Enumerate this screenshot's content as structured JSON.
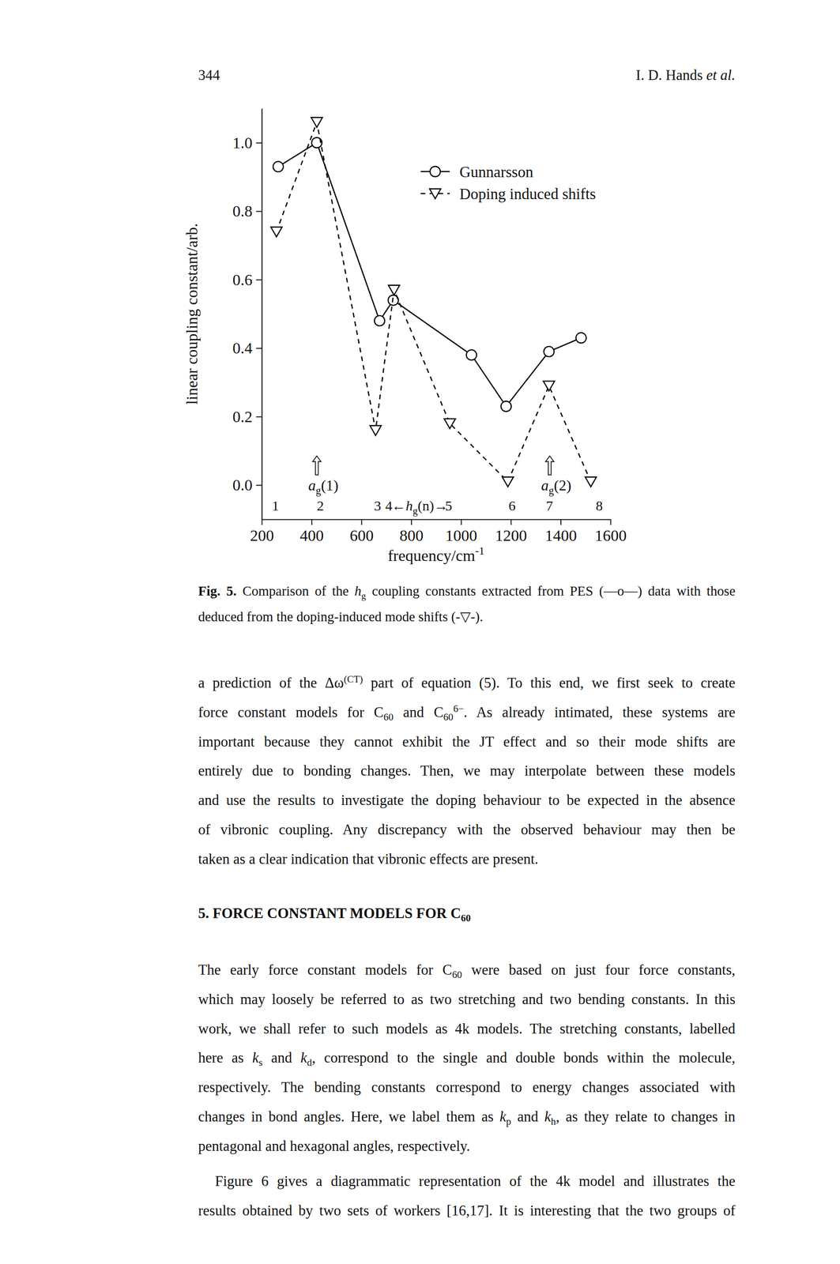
{
  "header": {
    "page_number": "344",
    "running_title": "I. D. Hands et al."
  },
  "chart_data": {
    "type": "line",
    "x_label": "frequency/cm-1",
    "y_label": "linear coupling constant/arb.",
    "xlim": [
      200,
      1600
    ],
    "xticks": [
      200,
      400,
      600,
      800,
      1000,
      1200,
      1400,
      1600
    ],
    "ylim": [
      -0.1,
      1.1
    ],
    "yticks": [
      {
        "value": 0,
        "label": "0.0"
      },
      0.2,
      0.4,
      0.6,
      0.8,
      {
        "value": 1,
        "label": "1.0"
      }
    ],
    "legend": "top-right",
    "series": [
      {
        "name": "Gunnarsson",
        "color": "#000000",
        "marker": "circle",
        "line_style": "solid",
        "x": [
          266,
          421,
          673,
          728,
          1042,
          1181,
          1353,
          1482
        ],
        "values": [
          0.93,
          1.0,
          0.48,
          0.54,
          0.38,
          0.23,
          0.39,
          0.43
        ]
      },
      {
        "name": "Doping induced shifts",
        "color": "#000000",
        "marker": "triangle-down",
        "line_style": "dashed",
        "x": [
          259,
          421,
          657,
          731,
          955,
          1188,
          1353,
          1521
        ],
        "values": [
          0.74,
          1.06,
          0.16,
          0.57,
          0.18,
          0.01,
          0.29,
          0.01
        ]
      }
    ],
    "annotations": [
      {
        "text": "1",
        "x": 255,
        "y": -0.06
      },
      {
        "text": "2",
        "x": 435,
        "y": -0.06
      },
      {
        "text": "3",
        "x": 665,
        "y": -0.06
      },
      {
        "text": "4",
        "x": 710,
        "y": -0.06
      },
      {
        "text": "←hg(n)→",
        "x": 835,
        "y": -0.06
      },
      {
        "text": "5",
        "x": 950,
        "y": -0.06
      },
      {
        "text": "6",
        "x": 1205,
        "y": -0.06
      },
      {
        "text": "7",
        "x": 1355,
        "y": -0.06
      },
      {
        "text": "8",
        "x": 1555,
        "y": -0.06
      }
    ],
    "mode_arrows": [
      {
        "label": "ag(1)",
        "x": 421
      },
      {
        "label": "ag(2)",
        "x": 1356
      }
    ]
  },
  "caption": {
    "lines": [
      "Fig. 5. Comparison of the hg coupling constants extracted from PES (—o—) data with those",
      "deduced from the doping-induced mode shifts (-▽-)."
    ]
  },
  "blocks": [
    {
      "type": "paragraph",
      "lines": [
        "a prediction of the Δω(CT) part of equation (5). To this end, we first seek to create",
        "force constant models for C60 and C606−. As already intimated, these systems are",
        "important because they cannot exhibit the JT effect and so their mode shifts are",
        "entirely due to bonding changes. Then, we may interpolate between these models",
        "and use the results to investigate the doping behaviour to be expected in the absence",
        "of vibronic coupling. Any discrepancy with the observed behaviour may then be",
        "taken as a clear indication that vibronic effects are present."
      ]
    },
    {
      "type": "heading",
      "text": "5. FORCE CONSTANT MODELS FOR C60"
    },
    {
      "type": "paragraph",
      "lines": [
        "The early force constant models for C60 were based on just four force constants,",
        "which may loosely be referred to as two stretching and two bending constants. In this",
        "work, we shall refer to such models as 4k models. The stretching constants, labelled",
        "here as ks and kd, correspond to the single and double bonds within the molecule,",
        "respectively. The bending constants correspond to energy changes associated with",
        "changes in bond angles. Here, we label them as kp and kh, as they relate to changes in",
        "pentagonal and hexagonal angles, respectively."
      ]
    },
    {
      "type": "paragraph",
      "lines": [
        "Figure 6 gives a diagrammatic representation of the 4k model and illustrates the",
        "results obtained by two sets of workers [16,17]. It is interesting that the two groups of"
      ]
    }
  ]
}
